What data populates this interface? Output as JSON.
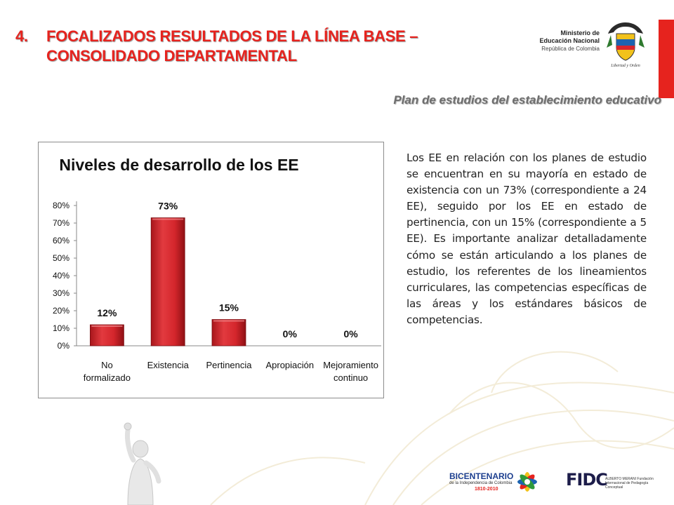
{
  "header": {
    "number": "4.",
    "title_line1": "FOCALIZADOS RESULTADOS DE LA LÍNEA BASE –",
    "title_line2": "CONSOLIDADO DEPARTAMENTAL",
    "subtitle": "Plan de estudios del establecimiento educativo"
  },
  "ministry_logo": {
    "line1": "Ministerio de",
    "line2": "Educación Nacional",
    "line3": "República de Colombia",
    "motto": "Libertad y Orden"
  },
  "colors": {
    "title": "#e6231e",
    "bar": "#d9262c",
    "bar_dark": "#8f1014"
  },
  "chart_data": {
    "type": "bar",
    "title": "Niveles de desarrollo de los EE",
    "categories": [
      [
        "No",
        "formalizado"
      ],
      [
        "Existencia"
      ],
      [
        "Pertinencia"
      ],
      [
        "Apropiación"
      ],
      [
        "Mejoramiento",
        "continuo"
      ]
    ],
    "values": [
      12,
      73,
      15,
      0,
      0
    ],
    "data_labels": [
      "12%",
      "73%",
      "15%",
      "0%",
      "0%"
    ],
    "ylim": [
      0,
      80
    ],
    "yticks": [
      0,
      10,
      20,
      30,
      40,
      50,
      60,
      70,
      80
    ],
    "ytick_labels": [
      "0%",
      "10%",
      "20%",
      "30%",
      "40%",
      "50%",
      "60%",
      "70%",
      "80%"
    ],
    "grid": false,
    "legend": "none"
  },
  "paragraph": "Los EE en relación con los planes de estudio se encuentran en su mayoría en estado de existencia con un 73% (correspondiente a 24 EE), seguido por los EE en estado de pertinencia, con un 15% (correspondiente a 5 EE). Es importante analizar detalladamente cómo se están articulando a los planes de estudio, los referentes de los lineamientos curriculares, las competencias específicas de las áreas y los estándares básicos de competencias.",
  "footer": {
    "bicentenario": "BICENTENARIO",
    "bicentenario_sub": "de la Independencia de Colombia",
    "bicentenario_years": "1810-2010",
    "fidc": "FIDC",
    "fidc_sub": "ALBERTO MERANI Fundación Internacional de Pedagogía Conceptual"
  }
}
